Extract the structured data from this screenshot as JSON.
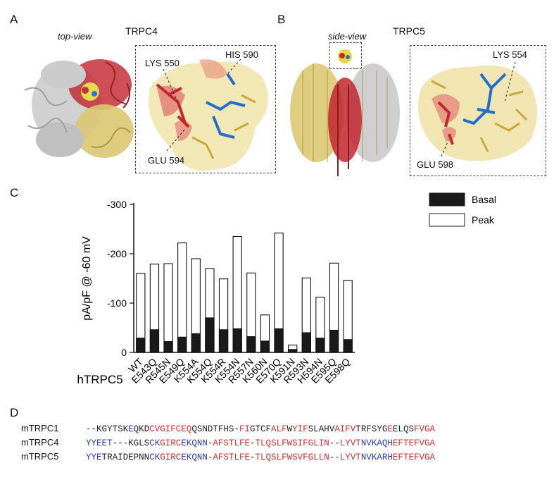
{
  "panels": {
    "a": {
      "letter": "A",
      "view": "top-view",
      "protein": "TRPC4",
      "labels": [
        "LYS 550",
        "HIS 590",
        "GLU 594"
      ]
    },
    "b": {
      "letter": "B",
      "view": "side-view",
      "protein": "TRPC5",
      "labels": [
        "LYS 554",
        "GLU 598"
      ]
    },
    "c": {
      "letter": "C"
    },
    "d": {
      "letter": "D"
    }
  },
  "colors": {
    "trpc_red": "#c2262e",
    "trpc_yellow": "#d9c46a",
    "grey": "#bdbdbd",
    "ligand": "#1f6fcf",
    "basal": "#1a1a1a",
    "peak": "#ffffff"
  },
  "chart_data": {
    "type": "bar",
    "stacked_overlay": true,
    "xlabel": "hTRPC5",
    "ylabel": "pA/pF @ -60 mV",
    "ylim": [
      0,
      -300
    ],
    "yticks": [
      "-300",
      "-200",
      "-100",
      "0"
    ],
    "legend_position": "top-right",
    "categories": [
      "WT",
      "E543Q",
      "R545N",
      "E549Q",
      "K554A",
      "K554Q",
      "K554R",
      "K554N",
      "R557N",
      "K560N",
      "E570Q",
      "K591N",
      "R593N",
      "H594N",
      "E595Q",
      "E598Q"
    ],
    "series": [
      {
        "name": "Basal",
        "values": [
          -29,
          -46,
          -22,
          -31,
          -38,
          -70,
          -46,
          -48,
          -32,
          -23,
          -48,
          -6,
          -40,
          -29,
          -45,
          -26
        ]
      },
      {
        "name": "Peak",
        "values": [
          -160,
          -179,
          -180,
          -222,
          -190,
          -170,
          -149,
          -235,
          -161,
          -76,
          -242,
          -15,
          -151,
          -112,
          -181,
          -146
        ]
      }
    ]
  },
  "alignment": [
    {
      "name": "mTRPC1",
      "seq": "--KGYTSKEQKDCVGIFCEQQSNDTFHS-FIGTCFALFWYIFSLAHVAIFVTRFSYGEELQSFVGA",
      "colors": "kkkkkkkkbkkkrrrrrrrrkkkkkkkkkrrkkkkrrrkrrrkkkkkrrrrkkkkkkrkkkkrrrr"
    },
    {
      "name": "mTRPC4",
      "seq": "YYEET---KGLSCKGIRCEKQNN-AFSTLFE-TLQSLFWSIFGLIN--LYVTNVKAQHEFTEFVGA",
      "colors": "bbbbbkkkkkkkbbrrrrbbbbbkrrrrrrrkrrrrrrrrrrrrrrkkrrrrbbbbbbrrrrrrrr"
    },
    {
      "name": "mTRPC5",
      "seq": "YYETRAIDEPNNCKGIRCEKQNN-AFSTLFE-TLQSLFWSVFGLLN--LYVTNVKARHEFTEFVGA",
      "colors": "bbbkkkkkkkkkbbrrrrbbbbbkrrrrrrrkrrrrrrrrrrrrrrkkrrrrbbbbbbrrrrrrrr"
    }
  ]
}
